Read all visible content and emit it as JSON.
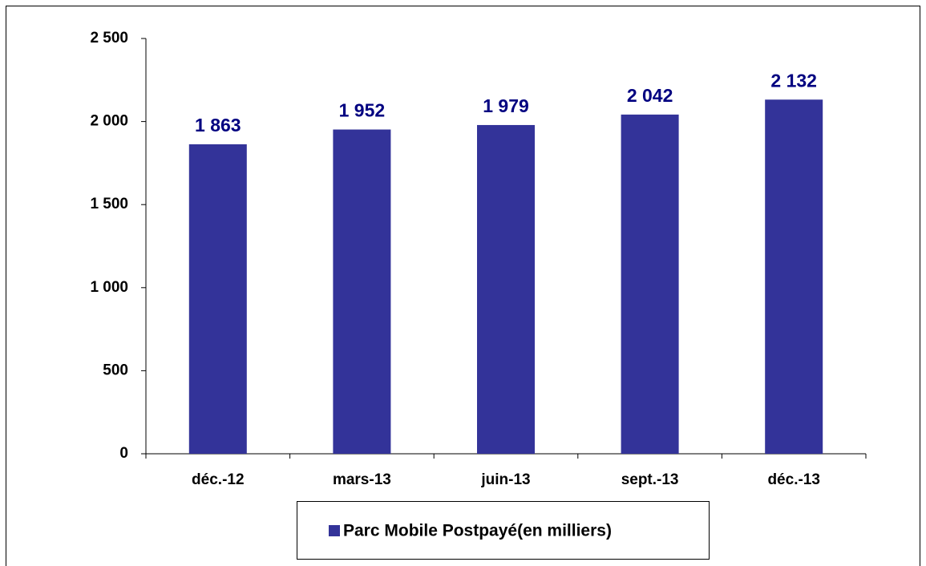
{
  "chart_data": {
    "type": "bar",
    "categories": [
      "déc.-12",
      "mars-13",
      "juin-13",
      "sept.-13",
      "déc.-13"
    ],
    "series": [
      {
        "name": "Parc Mobile Postpayé(en milliers)",
        "color": "#333399",
        "values": [
          1863,
          1952,
          1979,
          2042,
          2132
        ],
        "value_labels": [
          "1 863",
          "1 952",
          "1 979",
          "2 042",
          "2 132"
        ]
      }
    ],
    "ylim": [
      0,
      2500
    ],
    "yticks": [
      0,
      500,
      {
        "value": 1000,
        "label": "1 000"
      },
      {
        "value": 1500,
        "label": "1 500"
      },
      {
        "value": 2000,
        "label": "2 000"
      },
      {
        "value": 2500,
        "label": "2 500"
      }
    ],
    "grid": false,
    "legend": "bottom"
  }
}
